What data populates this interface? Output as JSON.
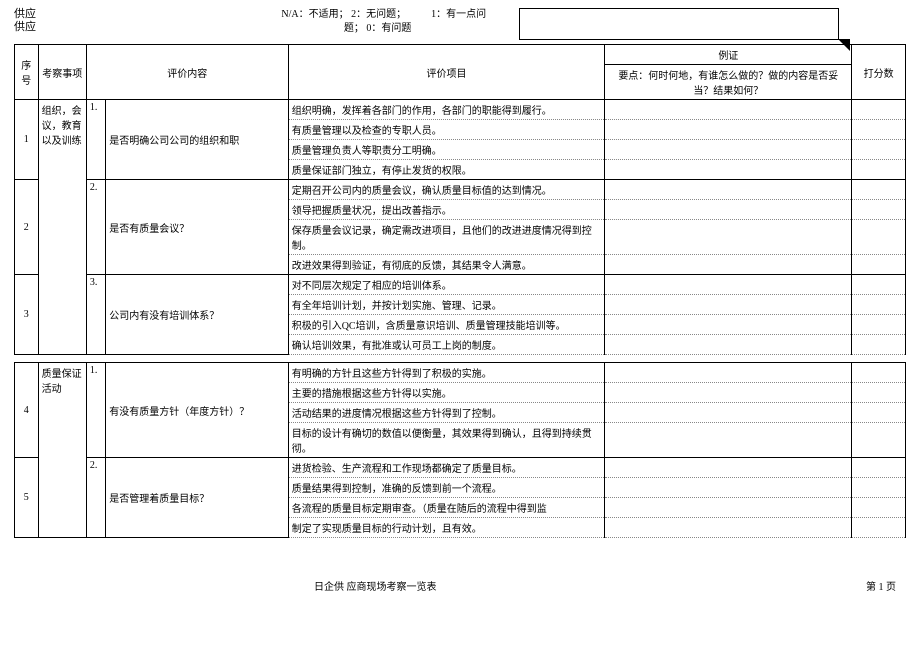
{
  "header": {
    "left_label_1": "供应",
    "left_label_2": "供应",
    "legend_text_1": "N/A：不适用； 2：无问题；",
    "legend_text_2": "1：有一点问",
    "legend_text_3": "题； 0：有问题"
  },
  "columns": {
    "seq": "序号",
    "category": "考察事项",
    "content": "评价内容",
    "item": "评价项目",
    "evidence_sub": "例证",
    "evidence": "要点：何时何地，有谁怎么做的？做的内容是否妥当？结果如何？",
    "score": "打分数"
  },
  "groups": [
    {
      "category": "组织，会议，教育以及训练",
      "rows": [
        {
          "seq": "1",
          "num": "1.",
          "content": "是否明确公司公司的组织和职",
          "items": [
            "组织明确，发挥着各部门的作用，各部门的职能得到履行。",
            "有质量管理以及检查的专职人员。",
            "质量管理负责人等职责分工明确。",
            "质量保证部门独立，有停止发货的权限。"
          ]
        },
        {
          "seq": "2",
          "num": "2.",
          "content": "是否有质量会议？",
          "items": [
            "定期召开公司内的质量会议，确认质量目标值的达到情况。",
            "领导把握质量状况，提出改善指示。",
            "保存质量会议记录，确定需改进项目，且他们的改进进度情况得到控制。",
            "改进效果得到验证，有彻底的反馈，其结果令人满意。"
          ]
        },
        {
          "seq": "3",
          "num": "3.",
          "content": "公司内有没有培训体系？",
          "items": [
            "对不同层次规定了相应的培训体系。",
            "有全年培训计划，并按计划实施、管理、记录。",
            "积极的引入QC培训，含质量意识培训、质量管理技能培训等。",
            "确认培训效果，有批准或认可员工上岗的制度。"
          ]
        }
      ]
    },
    {
      "category": "质量保证活动",
      "rows": [
        {
          "seq": "4",
          "num": "1.",
          "content": "有没有质量方针（年度方针）？",
          "items": [
            "有明确的方针且这些方针得到了积极的实施。",
            "主要的措施根据这些方针得以实施。",
            "活动结果的进度情况根据这些方针得到了控制。",
            "目标的设计有确切的数值以便衡量，其效果得到确认，且得到持续贯彻。"
          ]
        },
        {
          "seq": "5",
          "num": "2.",
          "content": "是否管理着质量目标？",
          "items": [
            "进货检验、生产流程和工作现场都确定了质量目标。",
            "质量结果得到控制，准确的反馈到前一个流程。",
            "各流程的质量目标定期审查。（质量在随后的流程中得到监",
            "制定了实现质量目标的行动计划，且有效。"
          ]
        }
      ]
    }
  ],
  "footer": {
    "title": "日企供 应商现场考察一览表",
    "page": "第 1 页"
  }
}
